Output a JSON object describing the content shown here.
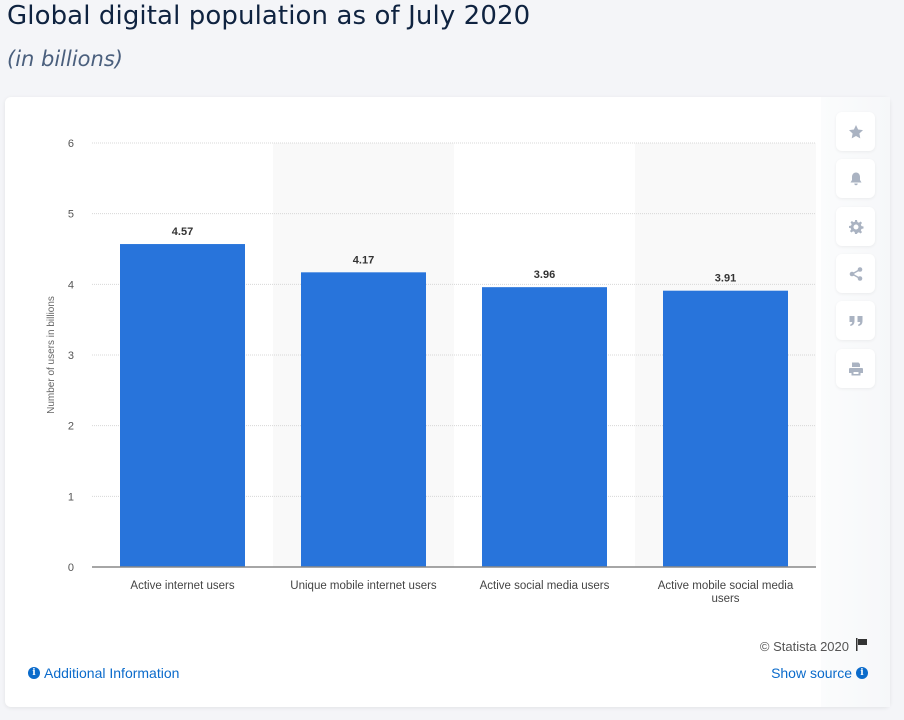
{
  "header": {
    "title": "Global digital population as of July 2020",
    "subtitle": "(in billions)"
  },
  "toolbar": [
    {
      "name": "star-icon",
      "label": "Favorite"
    },
    {
      "name": "bell-icon",
      "label": "Notifications"
    },
    {
      "name": "gear-icon",
      "label": "Settings"
    },
    {
      "name": "share-icon",
      "label": "Share"
    },
    {
      "name": "quote-icon",
      "label": "Cite"
    },
    {
      "name": "printer-icon",
      "label": "Print"
    }
  ],
  "footer": {
    "copyright": "© Statista 2020",
    "additional_info": "Additional Information",
    "show_source": "Show source"
  },
  "colors": {
    "bar": "#2874db",
    "link": "#0b6bcb",
    "title": "#0f2340"
  },
  "chart_data": {
    "type": "bar",
    "title": "Global digital population as of July 2020",
    "subtitle": "(in billions)",
    "categories": [
      "Active internet users",
      "Unique mobile internet users",
      "Active social media users",
      "Active mobile social media users"
    ],
    "values": [
      4.57,
      4.17,
      3.96,
      3.91
    ],
    "data_labels": [
      "4.57",
      "4.17",
      "3.96",
      "3.91"
    ],
    "xlabel": "",
    "ylabel": "Number of users in billions",
    "ylim": [
      0,
      6
    ],
    "yticks": [
      0,
      1,
      2,
      3,
      4,
      5,
      6
    ],
    "grid": true,
    "legend": "none"
  }
}
